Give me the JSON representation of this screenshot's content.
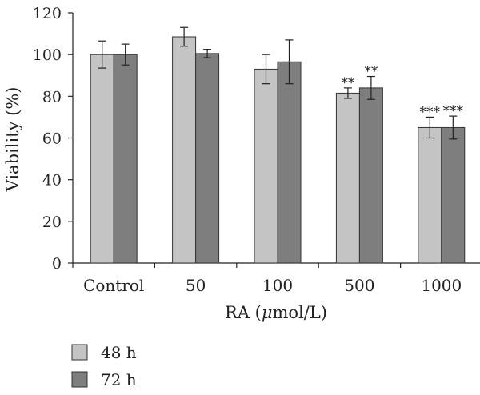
{
  "chart_data": {
    "type": "bar",
    "ylabel": "Viability (%)",
    "xlabel_prefix": "RA (",
    "xlabel_mu": "μ",
    "xlabel_suffix": "mol/L)",
    "ylim": [
      0,
      120
    ],
    "yticks": [
      "0",
      "20",
      "40",
      "60",
      "80",
      "100",
      "120"
    ],
    "categories": [
      "Control",
      "50",
      "100",
      "500",
      "1000"
    ],
    "series": [
      {
        "name": "48 h",
        "color": "#c4c4c4",
        "values": [
          100,
          108.5,
          93,
          81.5,
          65
        ],
        "errors": [
          6.5,
          4.5,
          7,
          2.5,
          5
        ],
        "significance": [
          "",
          "",
          "",
          "**",
          "***"
        ]
      },
      {
        "name": "72 h",
        "color": "#7e7e7e",
        "values": [
          100,
          100.5,
          96.5,
          84,
          65
        ],
        "errors": [
          5,
          2,
          10.5,
          5.5,
          5.5
        ],
        "significance": [
          "",
          "",
          "",
          "**",
          "***"
        ]
      }
    ],
    "legend_position": "bottom-left",
    "grid": false
  }
}
